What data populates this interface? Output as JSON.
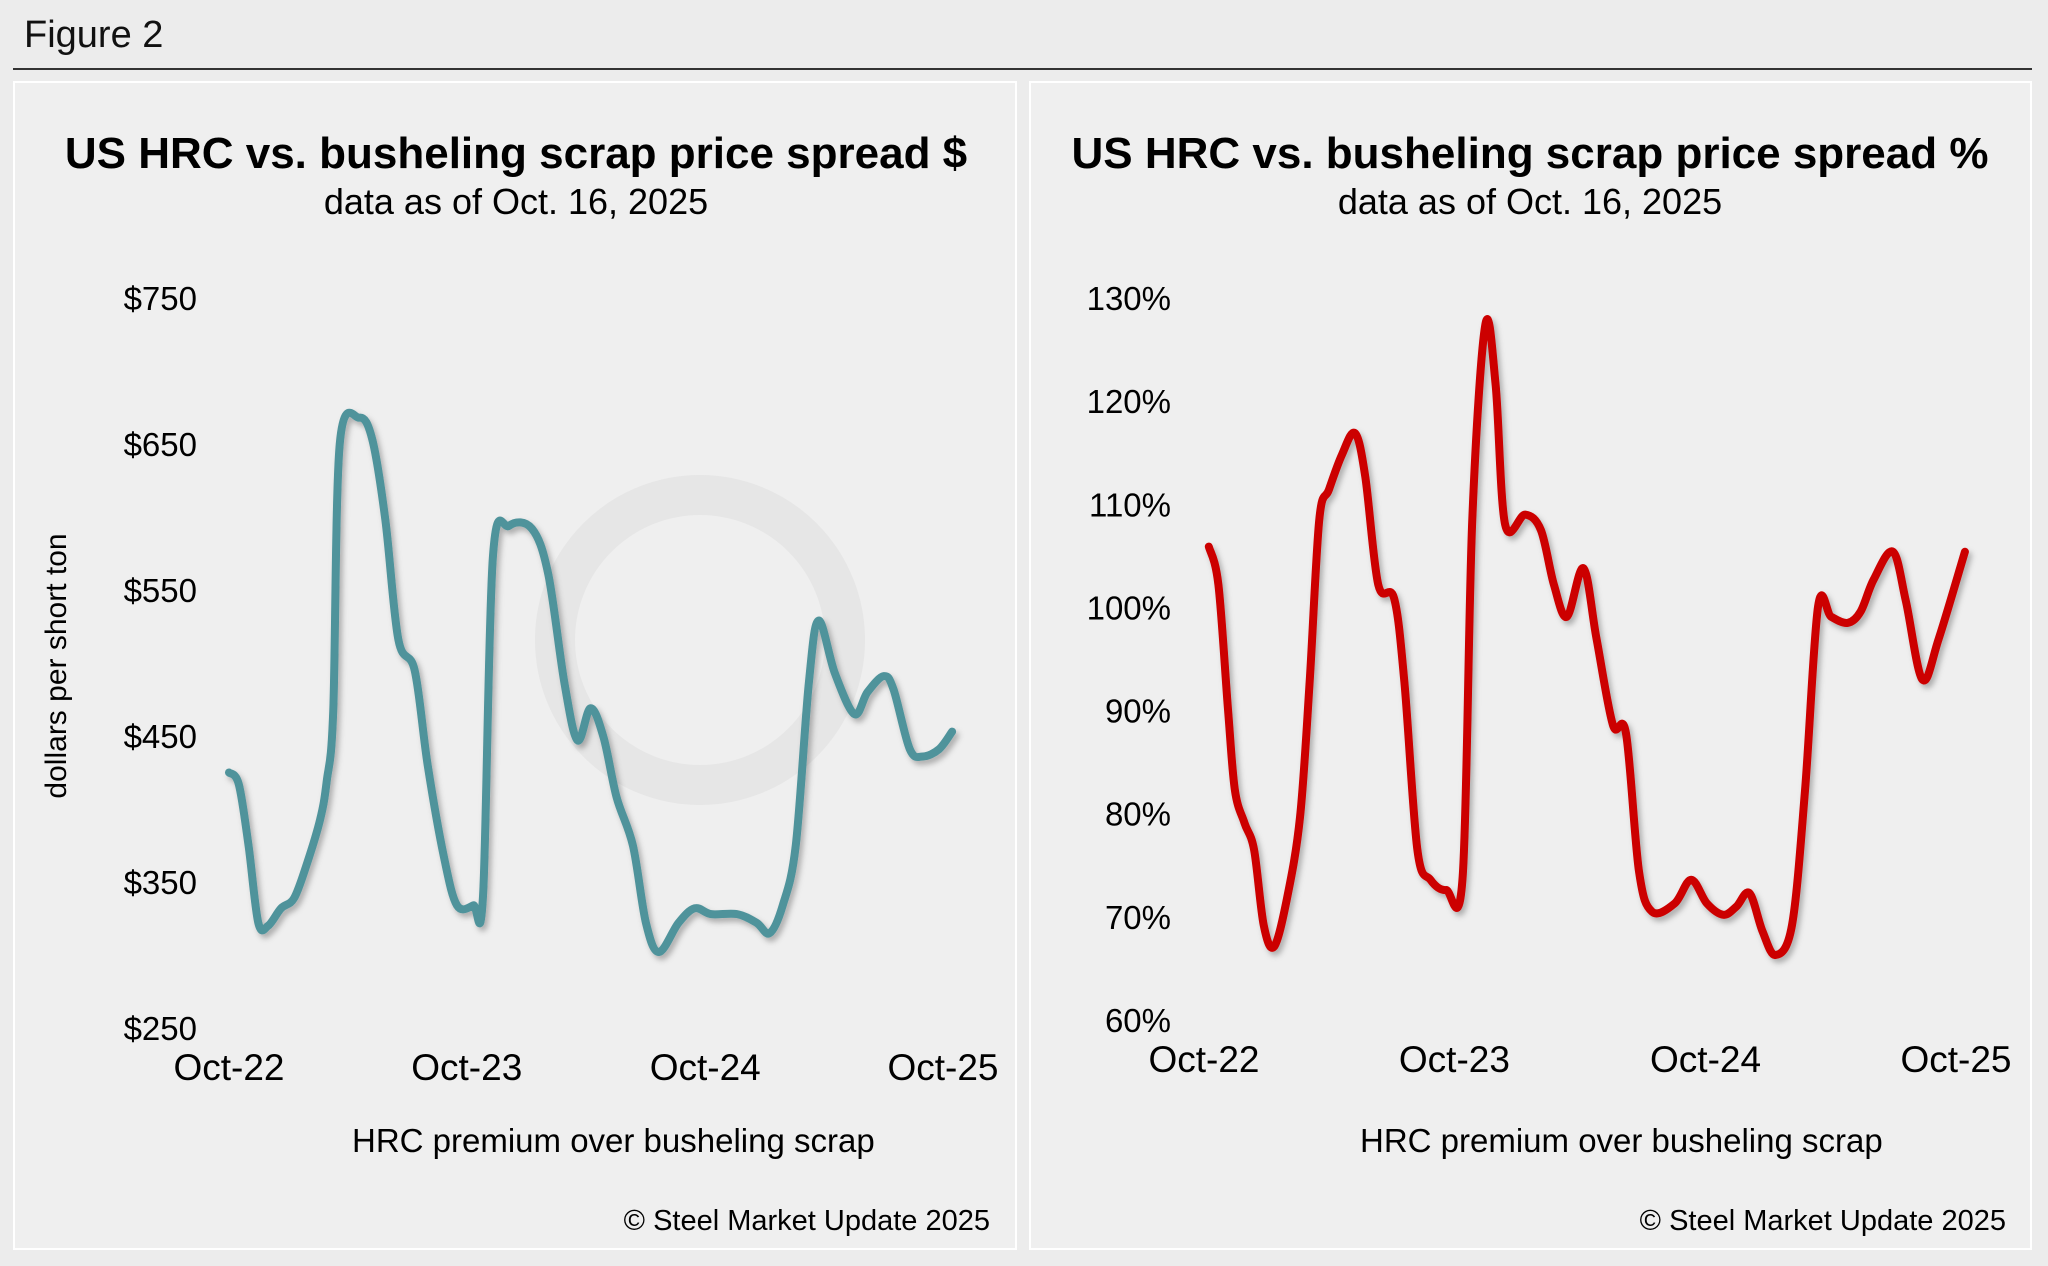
{
  "figure_label": "Figure 2",
  "watermark": "Steel Market Update",
  "chart_data": [
    {
      "type": "line",
      "title": "US HRC vs. busheling scrap price spread $",
      "subtitle": "data as of Oct. 16, 2025",
      "ylabel": "dollars per short ton",
      "xlabel": "",
      "ylim": [
        250,
        750
      ],
      "yticks": [
        "$750",
        "$650",
        "$550",
        "$450",
        "$350",
        "$250"
      ],
      "ytick_values": [
        750,
        650,
        550,
        450,
        350,
        250
      ],
      "xticks": [
        "Oct-22",
        "Oct-23",
        "Oct-24",
        "Oct-25"
      ],
      "xtick_dates": [
        "2022-10-01",
        "2023-10-01",
        "2024-10-01",
        "2025-10-01"
      ],
      "grid": false,
      "legend_position": "bottom",
      "color": "#4f939b",
      "copyright": "© Steel Market Update 2025",
      "series": [
        {
          "name": "HRC premium over busheling scrap",
          "x": [
            "2022-10-01",
            "2022-10-16",
            "2022-10-31",
            "2022-11-15",
            "2022-11-30",
            "2022-12-20",
            "2023-01-09",
            "2023-01-29",
            "2023-02-18",
            "2023-02-28",
            "2023-03-10",
            "2023-03-20",
            "2023-04-19",
            "2023-05-09",
            "2023-05-29",
            "2023-06-18",
            "2023-07-13",
            "2023-08-02",
            "2023-08-27",
            "2023-09-16",
            "2023-10-11",
            "2023-10-26",
            "2023-11-10",
            "2023-12-05",
            "2024-01-09",
            "2024-02-03",
            "2024-02-28",
            "2024-03-19",
            "2024-04-08",
            "2024-04-28",
            "2024-05-18",
            "2024-06-12",
            "2024-07-02",
            "2024-07-22",
            "2024-08-21",
            "2024-09-15",
            "2024-10-10",
            "2024-11-19",
            "2024-12-19",
            "2025-01-08",
            "2025-01-28",
            "2025-02-17",
            "2025-03-09",
            "2025-03-24",
            "2025-04-18",
            "2025-05-18",
            "2025-06-07",
            "2025-07-02",
            "2025-07-17",
            "2025-08-11",
            "2025-08-31",
            "2025-09-25",
            "2025-10-15"
          ],
          "values": [
            425,
            417,
            375,
            322,
            320,
            332,
            339,
            363,
            393,
            419,
            467,
            650,
            668,
            653,
            598,
            516,
            495,
            430,
            367,
            334,
            334,
            341,
            572,
            594,
            592,
            561,
            486,
            447,
            469,
            449,
            408,
            375,
            322,
            302,
            322,
            332,
            328,
            328,
            322,
            315,
            334,
            375,
            486,
            529,
            493,
            465,
            480,
            491,
            482,
            441,
            436,
            441,
            453
          ]
        }
      ]
    },
    {
      "type": "line",
      "title": "US HRC vs. busheling scrap price spread %",
      "subtitle": "data as of Oct. 16, 2025",
      "ylabel": "",
      "xlabel": "",
      "ylim": [
        60,
        130
      ],
      "yticks": [
        "130%",
        "120%",
        "110%",
        "100%",
        "90%",
        "80%",
        "70%",
        "60%"
      ],
      "ytick_values": [
        130,
        120,
        110,
        100,
        90,
        80,
        70,
        60
      ],
      "xticks": [
        "Oct-22",
        "Oct-23",
        "Oct-24",
        "Oct-25"
      ],
      "xtick_dates": [
        "2022-10-01",
        "2023-10-01",
        "2024-10-01",
        "2025-10-01"
      ],
      "grid": false,
      "legend_position": "bottom",
      "color": "#cc0000",
      "copyright": "© Steel Market Update 2025",
      "series": [
        {
          "name": "HRC premium over busheling scrap",
          "x": [
            "2022-10-08",
            "2022-10-22",
            "2022-11-05",
            "2022-11-15",
            "2022-11-29",
            "2022-12-13",
            "2022-12-27",
            "2023-01-11",
            "2023-01-30",
            "2023-02-18",
            "2023-03-04",
            "2023-03-18",
            "2023-04-01",
            "2023-04-20",
            "2023-05-09",
            "2023-05-24",
            "2023-06-12",
            "2023-07-05",
            "2023-07-20",
            "2023-08-08",
            "2023-08-27",
            "2023-09-19",
            "2023-10-13",
            "2023-10-27",
            "2023-11-15",
            "2023-11-30",
            "2023-12-14",
            "2024-01-12",
            "2024-02-04",
            "2024-02-23",
            "2024-03-13",
            "2024-04-06",
            "2024-04-25",
            "2024-05-19",
            "2024-06-07",
            "2024-06-26",
            "2024-07-15",
            "2024-08-17",
            "2024-09-10",
            "2024-10-03",
            "2024-10-27",
            "2024-11-15",
            "2024-12-04",
            "2024-12-23",
            "2025-01-11",
            "2025-02-04",
            "2025-02-23",
            "2025-03-14",
            "2025-04-02",
            "2025-04-26",
            "2025-05-15",
            "2025-06-03",
            "2025-07-01",
            "2025-07-20",
            "2025-08-13",
            "2025-09-06",
            "2025-10-14"
          ],
          "values": [
            105.9,
            102.2,
            90.1,
            82.3,
            79.1,
            76.5,
            69.2,
            67.1,
            71.8,
            79.7,
            92.8,
            108.5,
            111.4,
            114.8,
            116.9,
            112.7,
            102.2,
            100.9,
            92.8,
            76.5,
            73.6,
            72.6,
            73.9,
            108.5,
            127.4,
            121.6,
            108.0,
            109.0,
            107.5,
            102.2,
            99.1,
            103.8,
            97.0,
            88.6,
            87.8,
            74.4,
            70.5,
            71.3,
            73.6,
            71.3,
            70.2,
            71.0,
            72.3,
            68.6,
            66.3,
            69.2,
            82.3,
            100.1,
            99.1,
            98.5,
            99.6,
            102.7,
            105.4,
            100.6,
            93.0,
            97.0,
            105.4
          ]
        }
      ]
    }
  ]
}
